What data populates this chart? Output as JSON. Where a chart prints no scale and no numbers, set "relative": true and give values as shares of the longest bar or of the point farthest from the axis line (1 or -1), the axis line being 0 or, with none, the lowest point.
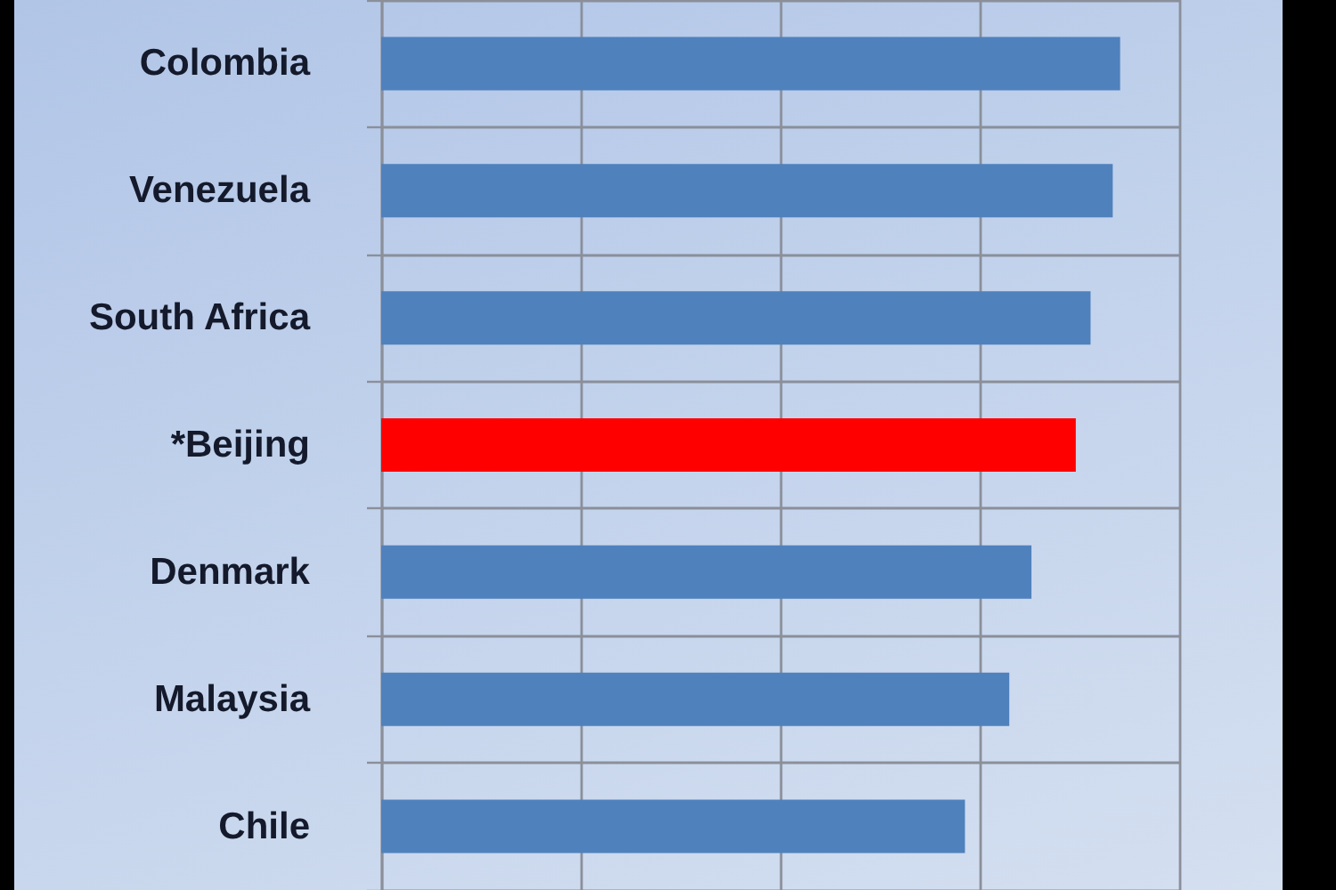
{
  "chart_data": {
    "type": "bar",
    "orientation": "horizontal",
    "relative": true,
    "categories": [
      "Colombia",
      "Venezuela",
      "South Africa",
      "*Beijing",
      "Denmark",
      "Malaysia",
      "Chile"
    ],
    "values": [
      1,
      0.99,
      0.96,
      0.94,
      0.88,
      0.85,
      0.79
    ],
    "colors": [
      "#4f81bd",
      "#4f81bd",
      "#4f81bd",
      "#ff0000",
      "#4f81bd",
      "#4f81bd",
      "#4f81bd"
    ],
    "grid": true
  }
}
